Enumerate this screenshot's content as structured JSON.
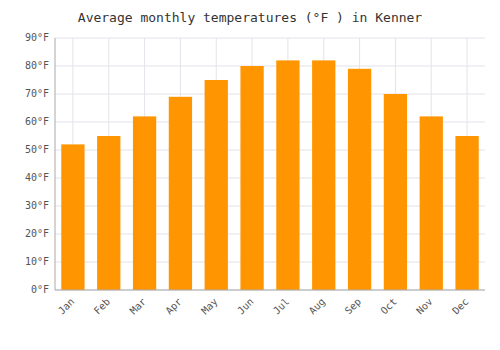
{
  "chart_data": {
    "type": "bar",
    "title": "Average monthly temperatures (°F ) in Kenner",
    "categories": [
      "Jan",
      "Feb",
      "Mar",
      "Apr",
      "May",
      "Jun",
      "Jul",
      "Aug",
      "Sep",
      "Oct",
      "Nov",
      "Dec"
    ],
    "values": [
      52,
      55,
      62,
      69,
      75,
      80,
      82,
      82,
      79,
      70,
      62,
      55
    ],
    "color": "#FF9500",
    "ylim": [
      0,
      90
    ],
    "yticks": [
      {
        "value": 0,
        "label": "0°F"
      },
      {
        "value": 10,
        "label": "10°F"
      },
      {
        "value": 20,
        "label": "20°F"
      },
      {
        "value": 30,
        "label": "30°F"
      },
      {
        "value": 40,
        "label": "40°F"
      },
      {
        "value": 50,
        "label": "50°F"
      },
      {
        "value": 60,
        "label": "60°F"
      },
      {
        "value": 70,
        "label": "70°F"
      },
      {
        "value": 80,
        "label": "80°F"
      },
      {
        "value": 90,
        "label": "90°F"
      }
    ],
    "grid": true
  }
}
